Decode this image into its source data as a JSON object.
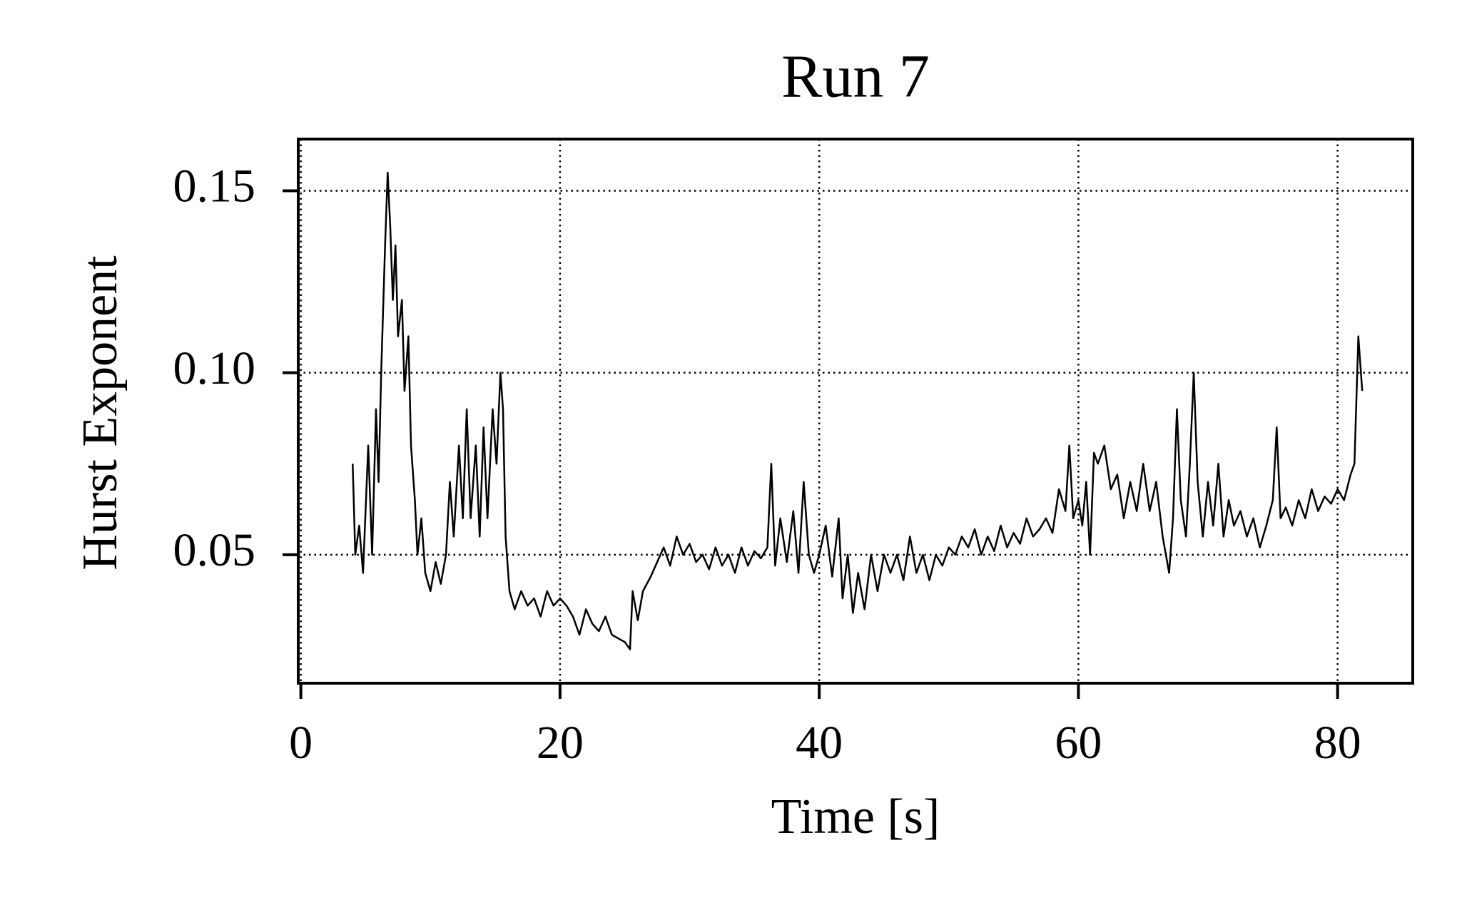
{
  "chart_data": {
    "type": "line",
    "title": "Run 7",
    "xlabel": "Time [s]",
    "ylabel": "Hurst Exponent",
    "x": [
      4.0,
      4.2,
      4.5,
      4.8,
      5.2,
      5.5,
      5.8,
      6.0,
      6.2,
      6.5,
      6.7,
      6.9,
      7.1,
      7.3,
      7.5,
      7.8,
      8.0,
      8.3,
      8.5,
      8.8,
      9.0,
      9.3,
      9.6,
      10.0,
      10.4,
      10.8,
      11.2,
      11.5,
      11.8,
      12.2,
      12.5,
      12.8,
      13.1,
      13.5,
      13.8,
      14.1,
      14.4,
      14.8,
      15.1,
      15.4,
      15.6,
      15.8,
      16.1,
      16.5,
      17.0,
      17.5,
      18.0,
      18.5,
      19.0,
      19.5,
      20.0,
      20.5,
      21.0,
      21.5,
      22.0,
      22.5,
      23.0,
      23.5,
      24.0,
      24.5,
      25.0,
      25.4,
      25.6,
      26.0,
      26.4,
      27.0,
      27.5,
      28.0,
      28.5,
      29.0,
      29.5,
      30.0,
      30.5,
      31.0,
      31.5,
      32.0,
      32.5,
      33.0,
      33.5,
      34.0,
      34.5,
      35.0,
      35.5,
      36.0,
      36.3,
      36.6,
      37.0,
      37.5,
      38.0,
      38.4,
      38.8,
      39.2,
      39.6,
      40.0,
      40.5,
      41.0,
      41.5,
      41.8,
      42.2,
      42.6,
      43.0,
      43.5,
      44.0,
      44.5,
      45.0,
      45.5,
      46.0,
      46.5,
      47.0,
      47.5,
      48.0,
      48.5,
      49.0,
      49.5,
      50.0,
      50.5,
      51.0,
      51.5,
      52.0,
      52.5,
      53.0,
      53.5,
      54.0,
      54.5,
      55.0,
      55.5,
      56.0,
      56.5,
      57.0,
      57.5,
      58.0,
      58.5,
      59.0,
      59.3,
      59.6,
      60.0,
      60.3,
      60.6,
      60.9,
      61.2,
      61.5,
      62.0,
      62.5,
      63.0,
      63.5,
      64.0,
      64.5,
      65.0,
      65.5,
      66.0,
      66.5,
      67.0,
      67.3,
      67.6,
      67.9,
      68.3,
      68.6,
      68.9,
      69.2,
      69.6,
      70.0,
      70.4,
      70.8,
      71.2,
      71.6,
      72.0,
      72.5,
      73.0,
      73.5,
      74.0,
      74.5,
      75.0,
      75.3,
      75.6,
      76.0,
      76.5,
      77.0,
      77.5,
      78.0,
      78.5,
      79.0,
      79.5,
      80.0,
      80.5,
      81.0,
      81.3,
      81.6,
      81.9
    ],
    "series": [
      {
        "color": "#000000",
        "values": [
          0.075,
          0.05,
          0.058,
          0.045,
          0.08,
          0.05,
          0.09,
          0.07,
          0.1,
          0.135,
          0.155,
          0.14,
          0.12,
          0.135,
          0.11,
          0.12,
          0.095,
          0.11,
          0.08,
          0.065,
          0.05,
          0.06,
          0.045,
          0.04,
          0.048,
          0.042,
          0.05,
          0.07,
          0.055,
          0.08,
          0.06,
          0.09,
          0.06,
          0.08,
          0.055,
          0.085,
          0.06,
          0.09,
          0.075,
          0.1,
          0.09,
          0.055,
          0.04,
          0.035,
          0.04,
          0.036,
          0.038,
          0.033,
          0.04,
          0.036,
          0.038,
          0.036,
          0.033,
          0.028,
          0.035,
          0.031,
          0.029,
          0.033,
          0.028,
          0.027,
          0.026,
          0.024,
          0.04,
          0.032,
          0.04,
          0.044,
          0.048,
          0.052,
          0.047,
          0.055,
          0.05,
          0.053,
          0.048,
          0.05,
          0.046,
          0.052,
          0.047,
          0.05,
          0.045,
          0.052,
          0.047,
          0.051,
          0.049,
          0.052,
          0.075,
          0.047,
          0.06,
          0.048,
          0.062,
          0.045,
          0.07,
          0.05,
          0.045,
          0.05,
          0.058,
          0.044,
          0.06,
          0.038,
          0.05,
          0.034,
          0.045,
          0.035,
          0.05,
          0.04,
          0.05,
          0.045,
          0.05,
          0.043,
          0.055,
          0.045,
          0.05,
          0.043,
          0.05,
          0.047,
          0.052,
          0.05,
          0.055,
          0.052,
          0.057,
          0.05,
          0.055,
          0.051,
          0.058,
          0.052,
          0.056,
          0.053,
          0.06,
          0.055,
          0.057,
          0.06,
          0.056,
          0.068,
          0.062,
          0.08,
          0.06,
          0.065,
          0.058,
          0.07,
          0.05,
          0.078,
          0.075,
          0.08,
          0.068,
          0.072,
          0.06,
          0.07,
          0.062,
          0.075,
          0.062,
          0.07,
          0.055,
          0.045,
          0.06,
          0.09,
          0.065,
          0.055,
          0.075,
          0.1,
          0.07,
          0.055,
          0.07,
          0.058,
          0.075,
          0.055,
          0.065,
          0.058,
          0.062,
          0.055,
          0.06,
          0.052,
          0.058,
          0.065,
          0.085,
          0.06,
          0.063,
          0.058,
          0.065,
          0.06,
          0.068,
          0.062,
          0.066,
          0.064,
          0.068,
          0.065,
          0.072,
          0.075,
          0.11,
          0.095
        ]
      }
    ],
    "xlim": [
      -0.2,
      85.8
    ],
    "ylim": [
      0.0147,
      0.1642
    ],
    "xticks": [
      0,
      20,
      40,
      60,
      80
    ],
    "yticks": [
      0.05,
      {
        "value": 0.1,
        "label": "0.10"
      },
      0.15
    ],
    "grid": true
  }
}
